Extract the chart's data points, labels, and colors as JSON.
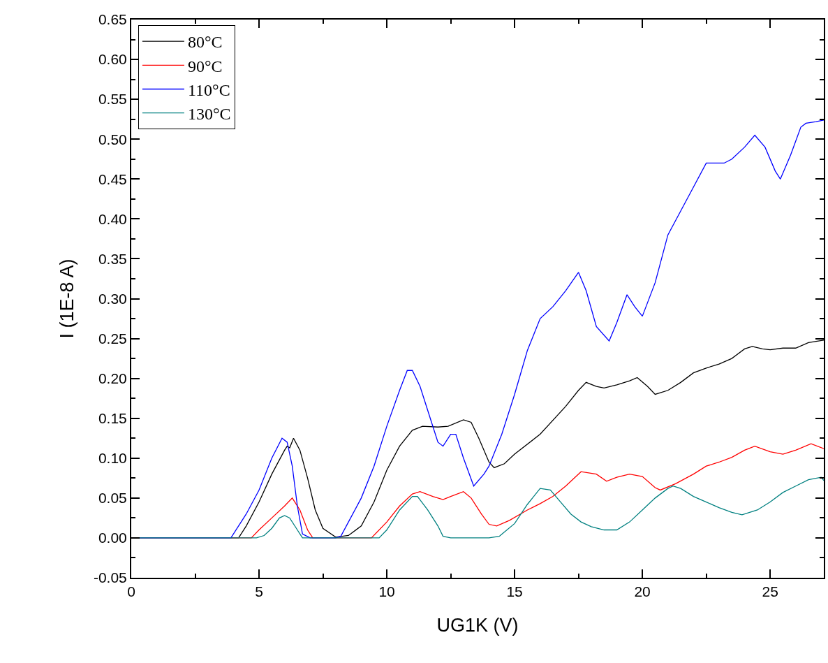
{
  "chart_data": {
    "type": "line",
    "xlabel": "UG1K (V)",
    "ylabel": "I (1E-8 A)",
    "xlim": [
      0,
      27.1
    ],
    "xticks": [
      0,
      5,
      10,
      15,
      20,
      25
    ],
    "ylim": [
      -0.05,
      0.65
    ],
    "yticks": [
      {
        "value": -0.05,
        "label": "-0.05"
      },
      {
        "value": 0,
        "label": "0.00"
      },
      {
        "value": 0.05,
        "label": "0.05"
      },
      {
        "value": 0.1,
        "label": "0.10"
      },
      {
        "value": 0.15,
        "label": "0.15"
      },
      {
        "value": 0.2,
        "label": "0.20"
      },
      {
        "value": 0.25,
        "label": "0.25"
      },
      {
        "value": 0.3,
        "label": "0.30"
      },
      {
        "value": 0.35,
        "label": "0.35"
      },
      {
        "value": 0.4,
        "label": "0.40"
      },
      {
        "value": 0.45,
        "label": "0.45"
      },
      {
        "value": 0.5,
        "label": "0.50"
      },
      {
        "value": 0.55,
        "label": "0.55"
      },
      {
        "value": 0.6,
        "label": "0.60"
      },
      {
        "value": 0.65,
        "label": "0.65"
      }
    ],
    "grid": false,
    "legend": "top left",
    "marker": "none",
    "line_style": "solid",
    "series": [
      {
        "name": "80°C",
        "color": "#000000",
        "x": [
          0,
          4.2,
          4.5,
          5,
          5.5,
          6,
          6.1,
          6.2,
          6.35,
          6.6,
          6.9,
          7.2,
          7.5,
          8,
          8.5,
          9,
          9.5,
          10,
          10.5,
          11,
          11.4,
          12,
          12.4,
          13,
          13.3,
          13.6,
          14,
          14.2,
          14.6,
          15,
          16,
          17,
          17.5,
          17.8,
          18.2,
          18.5,
          19,
          19.5,
          19.8,
          20.2,
          20.5,
          21,
          21.5,
          22,
          22.5,
          23,
          23.5,
          24,
          24.3,
          24.7,
          25,
          25.5,
          26,
          26.5,
          27.1
        ],
        "values": [
          0,
          0,
          0.015,
          0.045,
          0.08,
          0.11,
          0.115,
          0.113,
          0.125,
          0.11,
          0.075,
          0.035,
          0.012,
          0.001,
          0.003,
          0.015,
          0.045,
          0.085,
          0.115,
          0.135,
          0.14,
          0.139,
          0.14,
          0.148,
          0.145,
          0.125,
          0.095,
          0.088,
          0.093,
          0.105,
          0.13,
          0.165,
          0.185,
          0.195,
          0.19,
          0.188,
          0.192,
          0.197,
          0.201,
          0.19,
          0.18,
          0.185,
          0.195,
          0.207,
          0.213,
          0.218,
          0.225,
          0.237,
          0.24,
          0.237,
          0.236,
          0.238,
          0.238,
          0.245,
          0.248
        ]
      },
      {
        "name": "90°C",
        "color": "#ff0000",
        "x": [
          0,
          4.7,
          5,
          5.5,
          6,
          6.3,
          6.6,
          6.9,
          7.1,
          9.4,
          10,
          10.5,
          11,
          11.3,
          11.8,
          12.2,
          12.5,
          13,
          13.3,
          13.7,
          14,
          14.3,
          14.8,
          15.5,
          16,
          16.5,
          17,
          17.6,
          18.2,
          18.6,
          19,
          19.5,
          20,
          20.5,
          20.7,
          21.3,
          22,
          22.5,
          23,
          23.5,
          24,
          24.4,
          25,
          25.5,
          26,
          26.6,
          27.1
        ],
        "values": [
          0,
          0,
          0.01,
          0.025,
          0.04,
          0.05,
          0.035,
          0.01,
          0,
          0,
          0.02,
          0.04,
          0.055,
          0.058,
          0.052,
          0.048,
          0.052,
          0.058,
          0.05,
          0.03,
          0.017,
          0.015,
          0.022,
          0.035,
          0.043,
          0.052,
          0.065,
          0.083,
          0.08,
          0.071,
          0.076,
          0.08,
          0.077,
          0.063,
          0.06,
          0.068,
          0.08,
          0.09,
          0.095,
          0.101,
          0.11,
          0.115,
          0.108,
          0.105,
          0.11,
          0.118,
          0.112
        ]
      },
      {
        "name": "110°C",
        "color": "#0000ff",
        "x": [
          0,
          3.9,
          4.5,
          5,
          5.5,
          5.9,
          6.1,
          6.3,
          6.5,
          6.7,
          7,
          8,
          8.2,
          8.5,
          9,
          9.5,
          10,
          10.5,
          10.8,
          11,
          11.3,
          11.7,
          12,
          12.2,
          12.5,
          12.7,
          13,
          13.4,
          13.8,
          14,
          14.5,
          15,
          15.5,
          16,
          16.5,
          17,
          17.5,
          17.8,
          18.2,
          18.7,
          19,
          19.4,
          19.7,
          20,
          20.5,
          21,
          21.5,
          22,
          22.5,
          23.2,
          23.5,
          24,
          24.4,
          24.8,
          25.2,
          25.4,
          25.8,
          26.2,
          26.4,
          26.8,
          27.1
        ],
        "values": [
          0,
          0,
          0.03,
          0.06,
          0.1,
          0.125,
          0.12,
          0.09,
          0.04,
          0.005,
          0,
          0,
          0.002,
          0.02,
          0.05,
          0.09,
          0.14,
          0.185,
          0.21,
          0.21,
          0.19,
          0.15,
          0.12,
          0.115,
          0.13,
          0.13,
          0.1,
          0.065,
          0.08,
          0.09,
          0.13,
          0.18,
          0.235,
          0.275,
          0.29,
          0.31,
          0.333,
          0.31,
          0.265,
          0.247,
          0.27,
          0.305,
          0.29,
          0.278,
          0.32,
          0.38,
          0.41,
          0.44,
          0.47,
          0.47,
          0.475,
          0.49,
          0.505,
          0.49,
          0.46,
          0.45,
          0.48,
          0.515,
          0.52,
          0.522,
          0.524
        ]
      },
      {
        "name": "130°C",
        "color": "#008080",
        "x": [
          0,
          4.9,
          5.2,
          5.5,
          5.8,
          6,
          6.2,
          6.5,
          6.7,
          9.7,
          10,
          10.5,
          11,
          11.2,
          11.6,
          12,
          12.2,
          12.5,
          14,
          14.4,
          15,
          15.5,
          16,
          16.4,
          16.8,
          17.2,
          17.6,
          18,
          18.5,
          19,
          19.5,
          20,
          20.5,
          21,
          21.2,
          21.5,
          22,
          22.5,
          23,
          23.5,
          23.9,
          24.5,
          25,
          25.5,
          26,
          26.5,
          27,
          27.1
        ],
        "values": [
          0,
          0,
          0.003,
          0.012,
          0.025,
          0.028,
          0.025,
          0.01,
          0,
          0,
          0.01,
          0.035,
          0.052,
          0.052,
          0.035,
          0.015,
          0.002,
          0,
          0,
          0.002,
          0.018,
          0.042,
          0.062,
          0.06,
          0.045,
          0.03,
          0.02,
          0.014,
          0.01,
          0.01,
          0.02,
          0.035,
          0.05,
          0.062,
          0.065,
          0.062,
          0.052,
          0.045,
          0.038,
          0.032,
          0.029,
          0.035,
          0.045,
          0.057,
          0.065,
          0.073,
          0.076,
          0.072
        ]
      }
    ]
  }
}
